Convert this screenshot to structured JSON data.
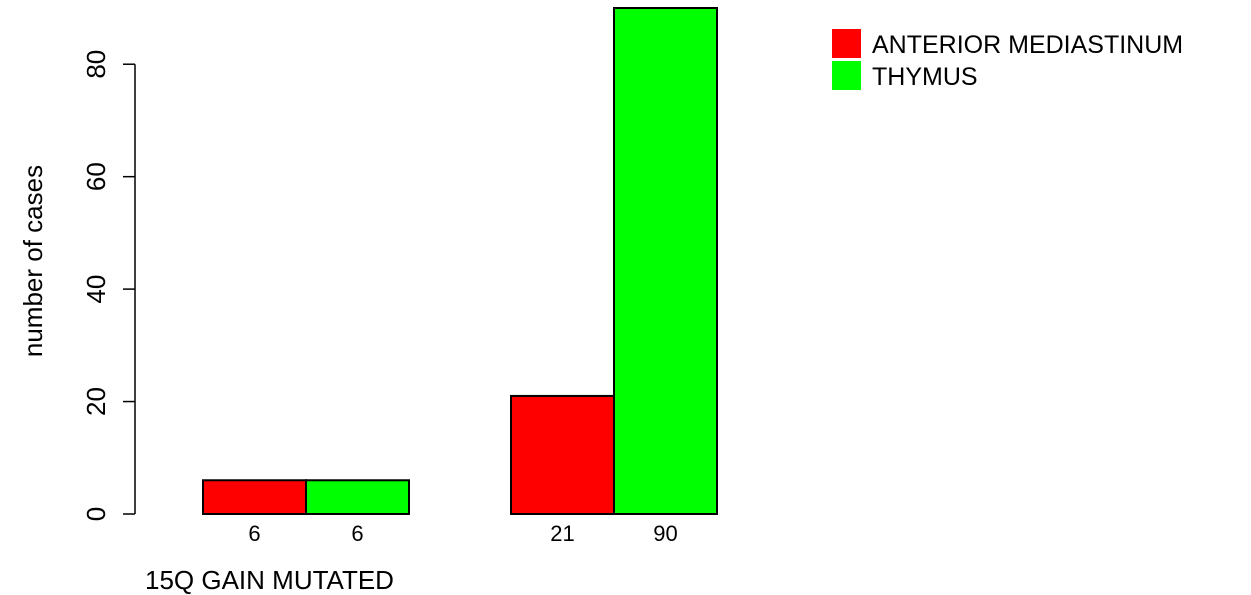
{
  "chart_data": {
    "type": "bar",
    "ylabel": "number of cases",
    "group_label": "15Q GAIN MUTATED",
    "ylim": [
      0,
      90
    ],
    "yticks": [
      0,
      20,
      40,
      60,
      80
    ],
    "groups": [
      {
        "bars": [
          {
            "series": "ANTERIOR MEDIASTINUM",
            "value": 6,
            "label": "6"
          },
          {
            "series": "THYMUS",
            "value": 6,
            "label": "6"
          }
        ]
      },
      {
        "bars": [
          {
            "series": "ANTERIOR MEDIASTINUM",
            "value": 21,
            "label": "21"
          },
          {
            "series": "THYMUS",
            "value": 90,
            "label": "90"
          }
        ]
      }
    ],
    "series": [
      {
        "name": "ANTERIOR MEDIASTINUM",
        "color": "#ff0000"
      },
      {
        "name": "THYMUS",
        "color": "#00ff00"
      }
    ],
    "legend_position": "top-right",
    "grid": false
  }
}
